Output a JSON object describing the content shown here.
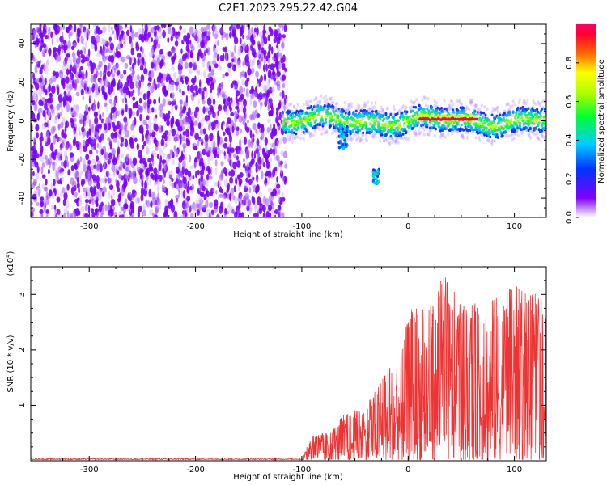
{
  "title": "C2E1.2023.295.22.42.G04",
  "chart_data": [
    {
      "type": "heatmap",
      "xlabel": "Height of straight line (km)",
      "ylabel": "Frequency (Hz)",
      "xlim": [
        -355,
        130
      ],
      "ylim": [
        -50,
        50
      ],
      "xticks": [
        -300,
        -200,
        -100,
        0,
        100
      ],
      "yticks": [
        -40,
        -20,
        0,
        20,
        40
      ],
      "colorbar": {
        "label": "Normalized spectral amplitude",
        "range": [
          0,
          1
        ],
        "ticks": [
          0.0,
          0.2,
          0.4,
          0.6,
          0.8
        ],
        "colormap": "rainbow (purple-blue-cyan-green-yellow-red-magenta)"
      },
      "regions": [
        {
          "name": "noise",
          "x_range": [
            -355,
            -115
          ],
          "freq_range": [
            -50,
            50
          ],
          "amplitude": "low (purple)"
        },
        {
          "name": "signal band",
          "x_range": [
            -118,
            130
          ],
          "center_freq": 0,
          "half_width_hz": 6,
          "amplitude": "high (blue-green-yellow-red)"
        },
        {
          "name": "strong tone",
          "x_range": [
            10,
            65
          ],
          "center_freq": 1,
          "amplitude": "max (red)"
        },
        {
          "name": "dip",
          "x_range": [
            -65,
            -57
          ],
          "freq_range": [
            -15,
            -2
          ]
        },
        {
          "name": "spur",
          "x_range": [
            -33,
            -27
          ],
          "freq_range": [
            -33,
            -25
          ]
        }
      ]
    },
    {
      "type": "line",
      "xlabel": "Height of straight line (km)",
      "ylabel": "SNR (10 * v/v)",
      "yscale_label": "(x10",
      "yscale_exp": "4",
      "yscale_close": ")",
      "xlim": [
        -355,
        130
      ],
      "ylim": [
        0,
        3.5
      ],
      "xticks": [
        -300,
        -200,
        -100,
        0,
        100
      ],
      "yticks": [
        1,
        2,
        3
      ],
      "color": "#ee3333",
      "envelope": [
        {
          "x": -355,
          "y": 0.02
        },
        {
          "x": -100,
          "y": 0.02
        },
        {
          "x": -90,
          "y": 0.5
        },
        {
          "x": -75,
          "y": 0.5
        },
        {
          "x": -60,
          "y": 0.85
        },
        {
          "x": -40,
          "y": 1.0
        },
        {
          "x": -25,
          "y": 1.5
        },
        {
          "x": -10,
          "y": 1.9
        },
        {
          "x": 5,
          "y": 2.9
        },
        {
          "x": 20,
          "y": 2.8
        },
        {
          "x": 33,
          "y": 3.45
        },
        {
          "x": 50,
          "y": 2.8
        },
        {
          "x": 75,
          "y": 2.9
        },
        {
          "x": 98,
          "y": 3.25
        },
        {
          "x": 115,
          "y": 3.0
        },
        {
          "x": 130,
          "y": 3.05
        }
      ]
    }
  ]
}
